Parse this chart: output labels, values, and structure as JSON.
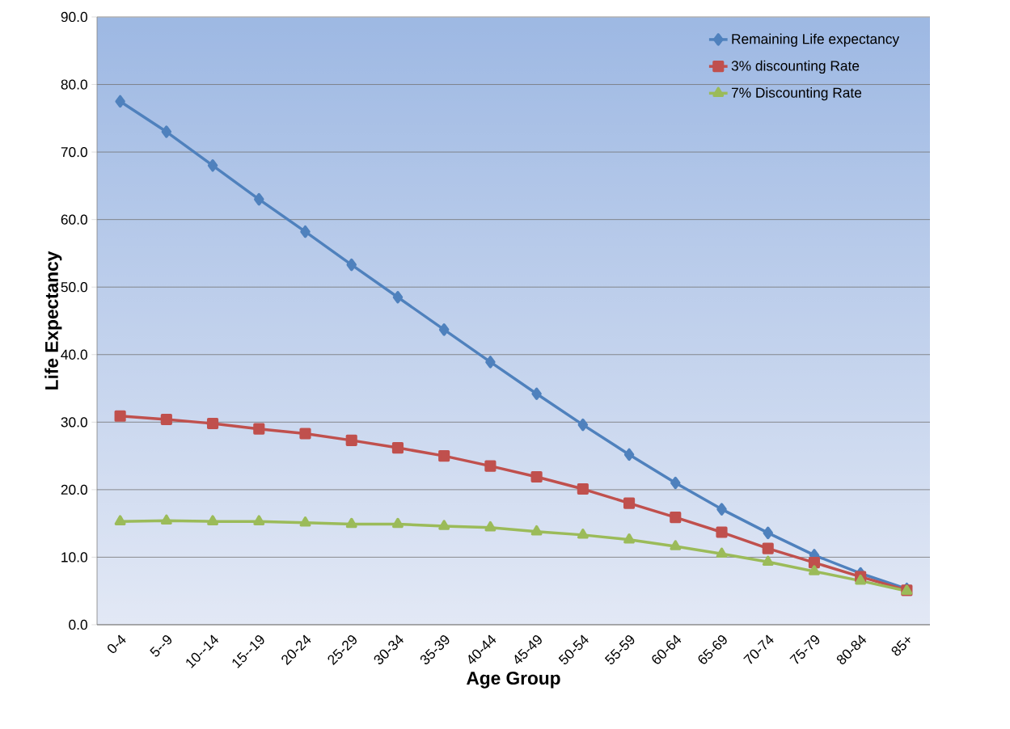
{
  "chart_data": {
    "type": "line",
    "xlabel": "Age Group",
    "ylabel": "Life Expectancy",
    "categories": [
      "0-4",
      "5--9",
      "10--14",
      "15--19",
      "20-24",
      "25-29",
      "30-34",
      "35-39",
      "40-44",
      "45-49",
      "50-54",
      "55-59",
      "60-64",
      "65-69",
      "70-74",
      "75-79",
      "80-84",
      "85+"
    ],
    "series": [
      {
        "name": "Remaining Life expectancy",
        "color": "#4f81bd",
        "marker": "diamond",
        "values": [
          77.5,
          73.0,
          68.0,
          63.0,
          58.2,
          53.3,
          48.5,
          43.7,
          38.9,
          34.2,
          29.6,
          25.2,
          21.0,
          17.1,
          13.6,
          10.3,
          7.6,
          5.3
        ]
      },
      {
        "name": "3% discounting Rate",
        "color": "#c0504d",
        "marker": "square",
        "values": [
          30.9,
          30.4,
          29.8,
          29.0,
          28.3,
          27.3,
          26.2,
          25.0,
          23.5,
          21.9,
          20.1,
          18.0,
          15.9,
          13.7,
          11.3,
          9.2,
          7.1,
          5.1
        ]
      },
      {
        "name": "7% Discounting Rate",
        "color": "#9bbb59",
        "marker": "triangle",
        "values": [
          15.3,
          15.4,
          15.3,
          15.3,
          15.1,
          14.9,
          14.9,
          14.6,
          14.4,
          13.8,
          13.3,
          12.6,
          11.6,
          10.5,
          9.3,
          7.9,
          6.5,
          5.0
        ]
      }
    ],
    "ylim": [
      0,
      90
    ],
    "yticks": [
      {
        "value": 0,
        "label": "0.0"
      },
      {
        "value": 10,
        "label": "10.0"
      },
      {
        "value": 20,
        "label": "20.0"
      },
      {
        "value": 30,
        "label": "30.0"
      },
      {
        "value": 40,
        "label": "40.0"
      },
      {
        "value": 50,
        "label": "50.0"
      },
      {
        "value": 60,
        "label": "60.0"
      },
      {
        "value": 70,
        "label": "70.0"
      },
      {
        "value": 80,
        "label": "80.0"
      },
      {
        "value": 90,
        "label": "90.0"
      }
    ],
    "grid": "y",
    "legend": "top right",
    "line_style": "solid"
  }
}
